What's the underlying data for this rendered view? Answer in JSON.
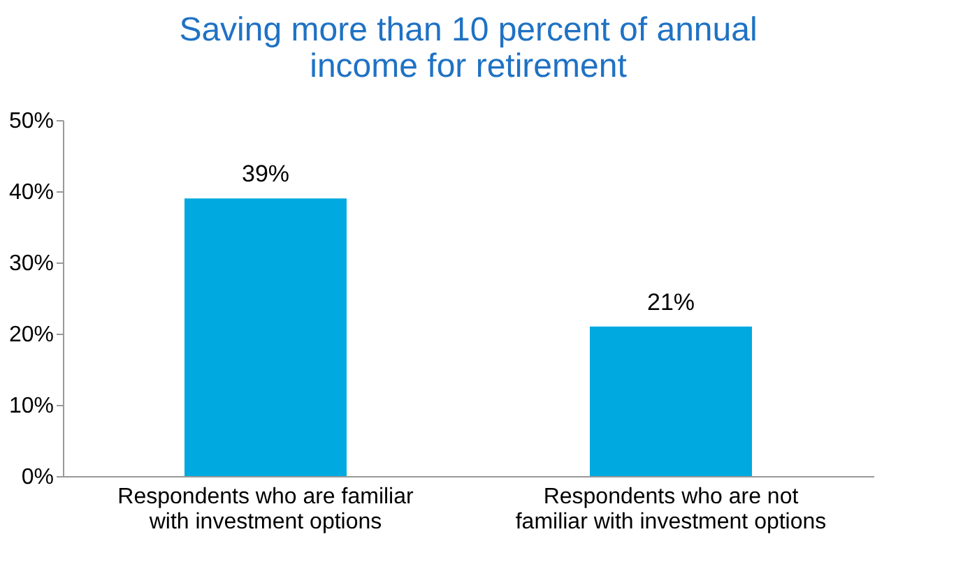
{
  "chart_data": {
    "type": "bar",
    "title": "Saving more than 10 percent of annual income for retirement",
    "categories": [
      "Respondents who are familiar with investment options",
      "Respondents who are not familiar with investment options"
    ],
    "values": [
      39,
      21
    ],
    "color": "#00a9e0",
    "value_labels": [
      "39%",
      "21%"
    ],
    "ylim": [
      0,
      50
    ],
    "yticks": [
      {
        "value": 0,
        "label": "0%"
      },
      {
        "value": 10,
        "label": "10%"
      },
      {
        "value": 20,
        "label": "20%"
      },
      {
        "value": 30,
        "label": "30%"
      },
      {
        "value": 40,
        "label": "40%"
      },
      {
        "value": 50,
        "label": "50%"
      }
    ],
    "grid": false
  }
}
